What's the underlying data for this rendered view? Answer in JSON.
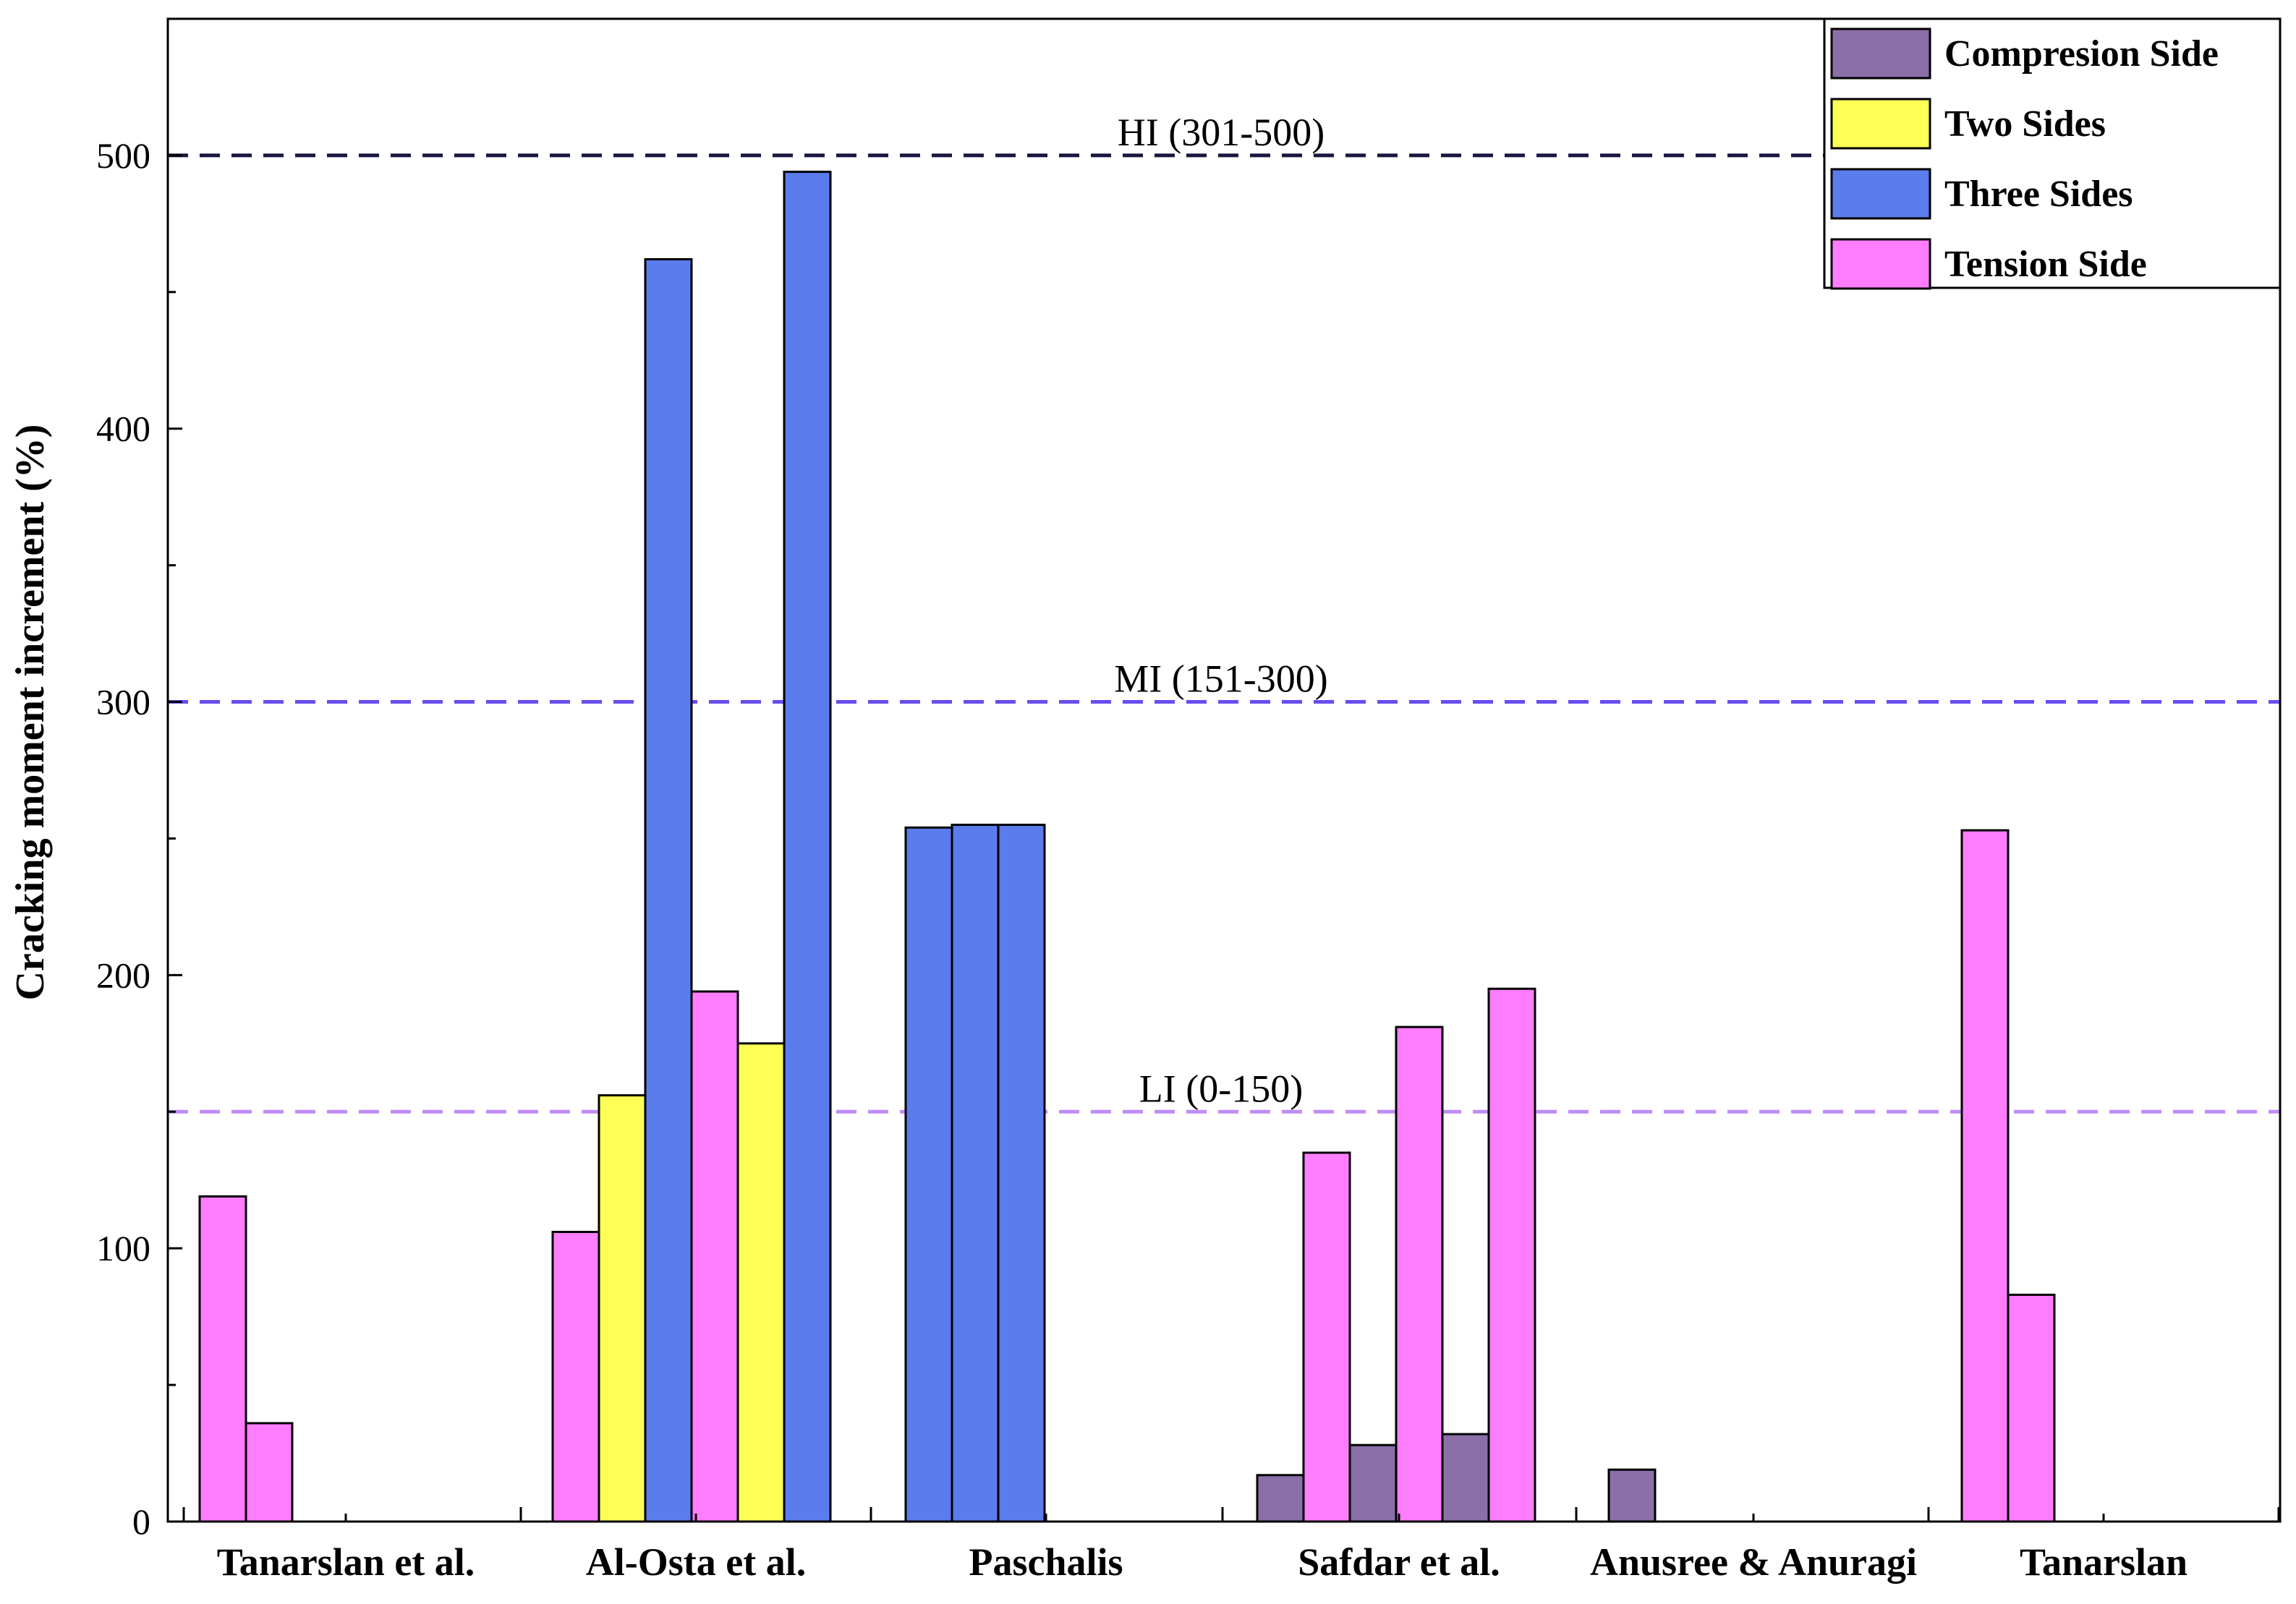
{
  "chart_data": {
    "type": "bar",
    "title": "",
    "xlabel": "",
    "ylabel": "Cracking moment increment (%)",
    "ylim": [
      0,
      550
    ],
    "yticks": [
      0,
      100,
      200,
      300,
      400,
      500
    ],
    "grid": false,
    "legend_position": "top-right",
    "series_styles": {
      "Compresion Side": "#8a6fa8",
      "Two Sides": "#ffff55",
      "Three Sides": "#5b7cec",
      "Tension Side": "#ff7dff"
    },
    "legend": [
      "Compresion Side",
      "Two Sides",
      "Three Sides",
      "Tension Side"
    ],
    "reference_lines": [
      {
        "label": "HI (301-500)",
        "value": 500,
        "color": "#161640"
      },
      {
        "label": "MI (151-300)",
        "value": 300,
        "color": "#6a4cf0"
      },
      {
        "label": "LI (0-150)",
        "value": 150,
        "color": "#c08cf6"
      }
    ],
    "categories": [
      {
        "name": "Tanarslan et al.",
        "bars": [
          {
            "series": "Tension Side",
            "value": 119
          },
          {
            "series": "Tension Side",
            "value": 36
          }
        ]
      },
      {
        "name": "Al-Osta et al.",
        "bars": [
          {
            "series": "Tension Side",
            "value": 106
          },
          {
            "series": "Two Sides",
            "value": 156
          },
          {
            "series": "Three Sides",
            "value": 462
          },
          {
            "series": "Tension Side",
            "value": 194
          },
          {
            "series": "Two Sides",
            "value": 175
          },
          {
            "series": "Three Sides",
            "value": 494
          }
        ]
      },
      {
        "name": "Paschalis",
        "bars": [
          {
            "series": "Three Sides",
            "value": 254
          },
          {
            "series": "Three Sides",
            "value": 255
          },
          {
            "series": "Three Sides",
            "value": 255
          }
        ]
      },
      {
        "name": "Safdar et al.",
        "bars": [
          {
            "series": "Compresion Side",
            "value": 17
          },
          {
            "series": "Tension Side",
            "value": 135
          },
          {
            "series": "Compresion Side",
            "value": 28
          },
          {
            "series": "Tension Side",
            "value": 181
          },
          {
            "series": "Compresion Side",
            "value": 32
          },
          {
            "series": "Tension Side",
            "value": 195
          }
        ]
      },
      {
        "name": "Anusree & Anuragi",
        "bars": [
          {
            "series": "Compresion Side",
            "value": 19
          }
        ]
      },
      {
        "name": "Tanarslan",
        "bars": [
          {
            "series": "Tension Side",
            "value": 253
          },
          {
            "series": "Tension Side",
            "value": 83
          }
        ]
      }
    ]
  }
}
